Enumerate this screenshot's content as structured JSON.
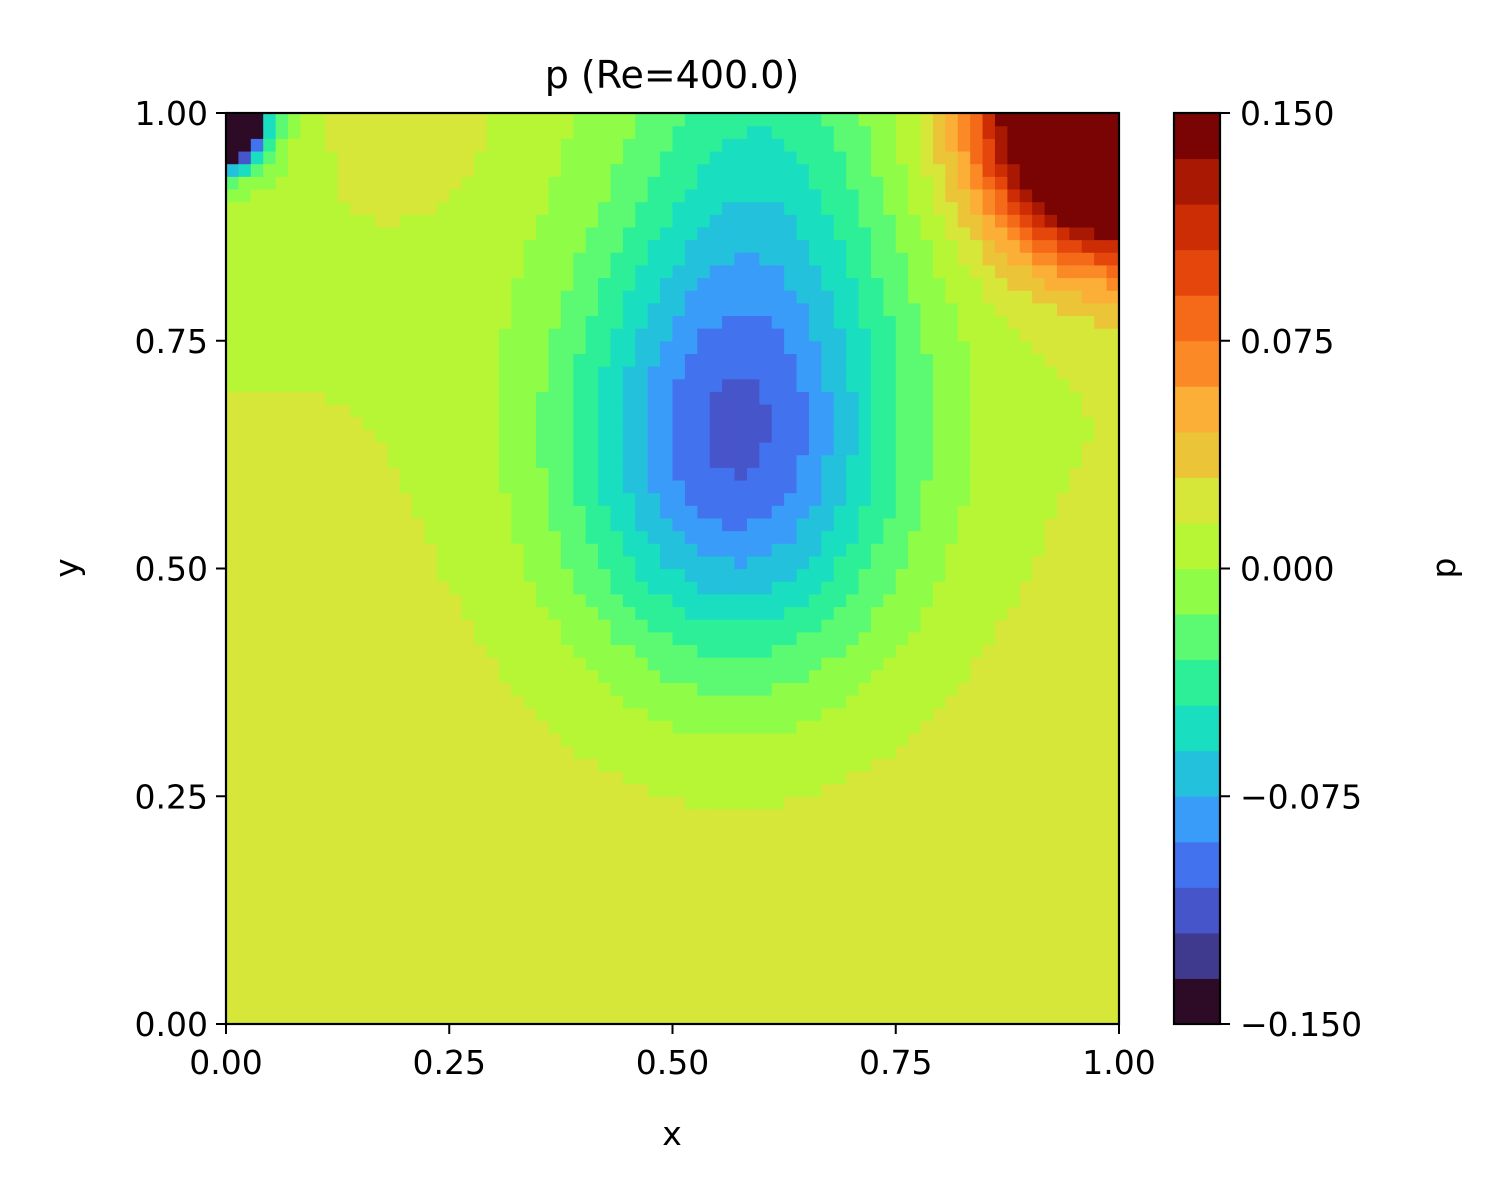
{
  "chart_data": {
    "type": "heatmap",
    "title": "p (Re=400.0)",
    "xlabel": "x",
    "ylabel": "y",
    "xlim": [
      0.0,
      1.0
    ],
    "ylim": [
      0.0,
      1.0
    ],
    "x_ticks": [
      {
        "value": 0.0,
        "label": "0.00"
      },
      {
        "value": 0.25,
        "label": "0.25"
      },
      {
        "value": 0.5,
        "label": "0.50"
      },
      {
        "value": 0.75,
        "label": "0.75"
      },
      {
        "value": 1.0,
        "label": "1.00"
      }
    ],
    "y_ticks": [
      {
        "value": 0.0,
        "label": "0.00"
      },
      {
        "value": 0.25,
        "label": "0.25"
      },
      {
        "value": 0.5,
        "label": "0.50"
      },
      {
        "value": 0.75,
        "label": "0.75"
      },
      {
        "value": 1.0,
        "label": "1.00"
      }
    ],
    "colorbar": {
      "label": "p",
      "range": [
        -0.15,
        0.15
      ],
      "levels": 20,
      "ticks": [
        {
          "value": 0.15,
          "label": "0.150"
        },
        {
          "value": 0.075,
          "label": "0.075"
        },
        {
          "value": 0.0,
          "label": "0.000"
        },
        {
          "value": -0.075,
          "label": "−0.075"
        },
        {
          "value": -0.15,
          "label": "−0.150"
        }
      ],
      "colors": [
        "#2d0b27",
        "#3f3a8e",
        "#4655c9",
        "#4272ee",
        "#3a9cf9",
        "#23c1dc",
        "#1adec0",
        "#2cef98",
        "#5bfa72",
        "#8ffd48",
        "#b6f635",
        "#d6e73a",
        "#ebc437",
        "#fbaf37",
        "#fb8a26",
        "#f56a18",
        "#e4460c",
        "#cc2d04",
        "#a91802",
        "#7a0403"
      ]
    },
    "field": {
      "description_of_features": [
        {
          "kind": "low",
          "x": 0.56,
          "y": 0.6,
          "value": -0.085
        },
        {
          "kind": "high",
          "x": 1.0,
          "y": 1.0,
          "value": 0.15
        },
        {
          "kind": "low",
          "x": 0.0,
          "y": 0.98,
          "value": -0.15
        }
      ]
    }
  }
}
